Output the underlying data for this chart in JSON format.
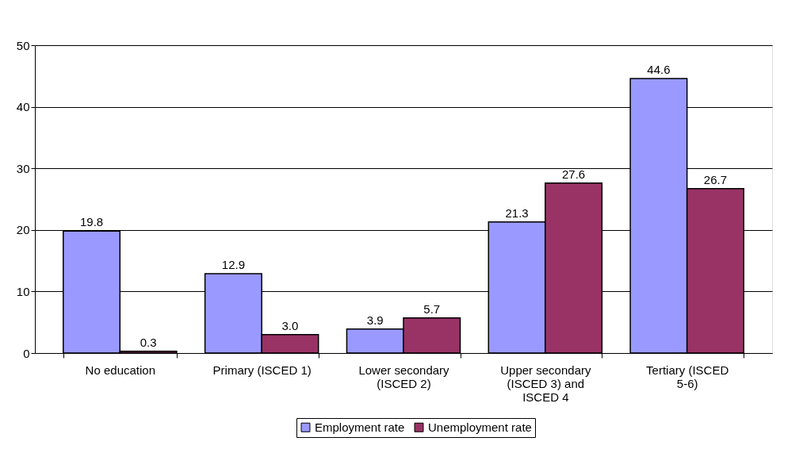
{
  "chart_data": {
    "type": "bar",
    "categories": [
      "No education",
      "Primary (ISCED 1)",
      "Lower secondary (ISCED 2)",
      "Upper secondary (ISCED 3) and ISCED 4",
      "Tertiary (ISCED 5-6)"
    ],
    "series": [
      {
        "name": "Employment rate",
        "color": "#9999ff",
        "values": [
          19.8,
          12.9,
          3.9,
          21.3,
          44.6
        ],
        "value_labels": [
          "19.8",
          "12.9",
          "3.9",
          "21.3",
          "44.6"
        ]
      },
      {
        "name": "Unemployment rate",
        "color": "#993366",
        "values": [
          0.3,
          3.0,
          5.7,
          27.6,
          26.7
        ],
        "value_labels": [
          "0.3",
          "3.0",
          "5.7",
          "27.6",
          "26.7"
        ]
      }
    ],
    "ylim": [
      0,
      50
    ],
    "yticks": [
      0,
      10,
      20,
      30,
      40,
      50
    ],
    "grid": "y",
    "legend": "bottom"
  }
}
